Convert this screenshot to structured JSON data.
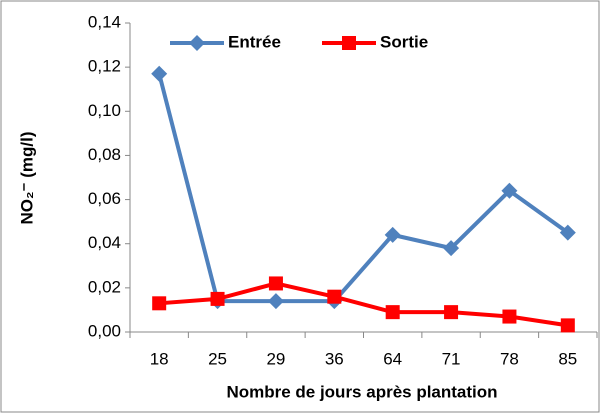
{
  "chart_data": {
    "type": "line",
    "xlabel": "Nombre de jours après plantation",
    "ylabel": "NO₂⁻ (mg/l)",
    "categories": [
      "18",
      "25",
      "29",
      "36",
      "64",
      "71",
      "78",
      "85"
    ],
    "series": [
      {
        "name": "Entrée",
        "color": "#4f81bd",
        "marker": "diamond",
        "values": [
          0.117,
          0.014,
          0.014,
          0.014,
          0.044,
          0.038,
          0.064,
          0.045
        ]
      },
      {
        "name": "Sortie",
        "color": "#ff0000",
        "marker": "square",
        "values": [
          0.013,
          0.015,
          0.022,
          0.016,
          0.009,
          0.009,
          0.007,
          0.003
        ]
      }
    ],
    "ylim": [
      0,
      0.14
    ],
    "yticks": [
      {
        "value": 0,
        "label": "0,00"
      },
      {
        "value": 0.02,
        "label": "0,02"
      },
      {
        "value": 0.04,
        "label": "0,04"
      },
      {
        "value": 0.06,
        "label": "0,06"
      },
      {
        "value": 0.08,
        "label": "0,08"
      },
      {
        "value": 0.1,
        "label": "0,10"
      },
      {
        "value": 0.12,
        "label": "0,12"
      },
      {
        "value": 0.14,
        "label": "0,14"
      }
    ],
    "grid": false,
    "legend": "top"
  }
}
